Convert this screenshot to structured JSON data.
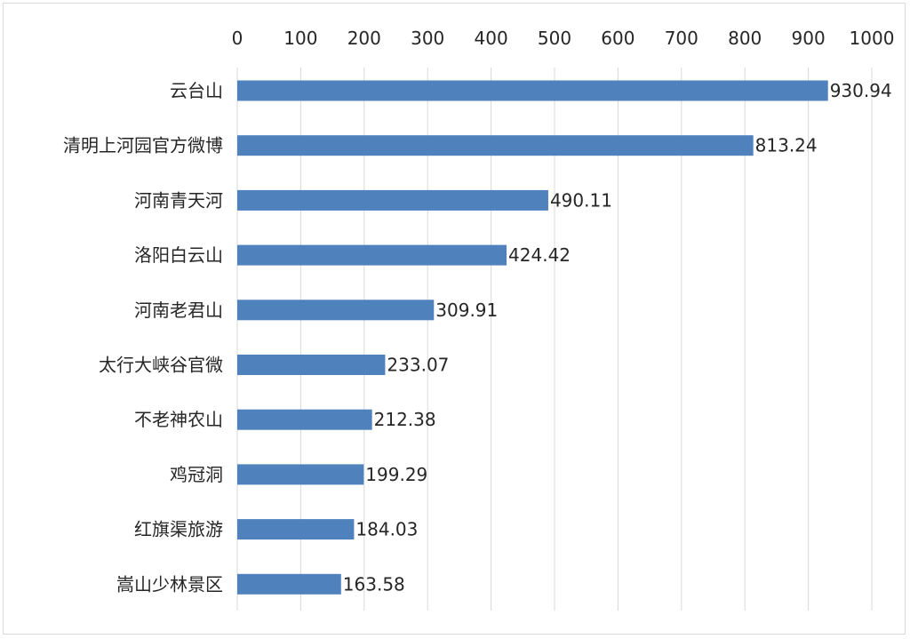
{
  "chart_data": {
    "type": "bar",
    "orientation": "horizontal",
    "categories": [
      "云台山",
      "清明上河园官方微博",
      "河南青天河",
      "洛阳白云山",
      "河南老君山",
      "太行大峡谷官微",
      "不老神农山",
      "鸡冠洞",
      "红旗渠旅游",
      "嵩山少林景区"
    ],
    "values": [
      930.94,
      813.24,
      490.11,
      424.42,
      309.91,
      233.07,
      212.38,
      199.29,
      184.03,
      163.58
    ],
    "value_labels": [
      "930.94",
      "813.24",
      "490.11",
      "424.42",
      "309.91",
      "233.07",
      "212.38",
      "199.29",
      "184.03",
      "163.58"
    ],
    "xlim": [
      0,
      1000
    ],
    "x_ticks": [
      "0",
      "100",
      "200",
      "300",
      "400",
      "500",
      "600",
      "700",
      "800",
      "900",
      "1000"
    ],
    "x_axis_position": "top",
    "grid": true,
    "legend": "none",
    "colors": {
      "bar": "#4f81bd",
      "grid": "#d9d9d9",
      "text": "#262626",
      "border": "#d9d9d9"
    }
  }
}
